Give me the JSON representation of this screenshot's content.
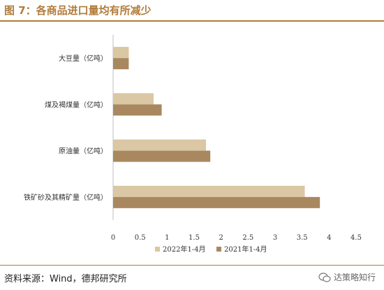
{
  "figure": {
    "title": "图 7：各商品进口量均有所减少",
    "source": "资料来源：Wind，德邦研究所",
    "watermark": "达策略知行"
  },
  "chart_data": {
    "type": "bar",
    "orientation": "horizontal",
    "categories": [
      "大豆量（亿吨）",
      "煤及褐煤量（亿吨）",
      "原油量（亿吨）",
      "铁矿砂及其精矿量（亿吨）"
    ],
    "series": [
      {
        "name": "2022年1-4月",
        "color": "#dac7a3",
        "values": [
          0.29,
          0.75,
          1.72,
          3.55
        ]
      },
      {
        "name": "2021年1-4月",
        "color": "#a98860",
        "values": [
          0.29,
          0.9,
          1.8,
          3.83
        ]
      }
    ],
    "xlim": [
      0,
      4.5
    ],
    "xticks": [
      "0",
      "0.5",
      "1",
      "1.5",
      "2",
      "2.5",
      "3",
      "3.5",
      "4",
      "4.5"
    ],
    "grid": false,
    "legend": "bottom"
  }
}
